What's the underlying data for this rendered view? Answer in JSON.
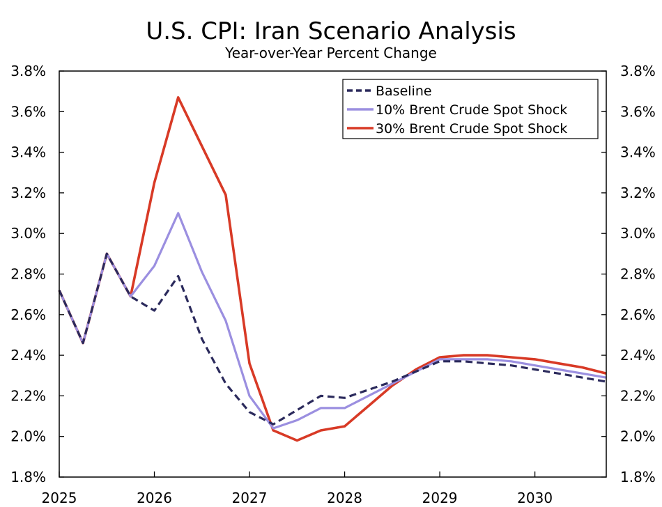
{
  "chart_data": {
    "type": "line",
    "title": "U.S. CPI: Iran Scenario Analysis",
    "subtitle": "Year-over-Year Percent Change",
    "xlabel": "",
    "ylabel": "",
    "xlim": [
      2025,
      2030.75
    ],
    "ylim": [
      1.8,
      3.8
    ],
    "yticks": [
      1.8,
      2.0,
      2.2,
      2.4,
      2.6,
      2.8,
      3.0,
      3.2,
      3.4,
      3.6,
      3.8
    ],
    "ytick_labels": [
      "1.8%",
      "2.0%",
      "2.2%",
      "2.4%",
      "2.6%",
      "2.8%",
      "3.0%",
      "3.2%",
      "3.4%",
      "3.6%",
      "3.8%"
    ],
    "xticks": [
      2025,
      2026,
      2027,
      2028,
      2029,
      2030
    ],
    "xtick_labels": [
      "2025",
      "2026",
      "2027",
      "2028",
      "2029",
      "2030"
    ],
    "legend_position": "top-right",
    "x": [
      2025,
      2025.25,
      2025.5,
      2025.75,
      2026,
      2026.25,
      2026.5,
      2026.75,
      2027,
      2027.25,
      2027.5,
      2027.75,
      2028,
      2028.25,
      2028.5,
      2028.75,
      2029,
      2029.25,
      2029.5,
      2029.75,
      2030,
      2030.25,
      2030.5,
      2030.75
    ],
    "series": [
      {
        "name": "Baseline",
        "color": "#2b2a5c",
        "style": "dashed",
        "values": [
          2.72,
          2.46,
          2.9,
          2.69,
          2.62,
          2.79,
          2.48,
          2.26,
          2.12,
          2.06,
          2.13,
          2.2,
          2.19,
          2.23,
          2.27,
          2.32,
          2.37,
          2.37,
          2.36,
          2.35,
          2.33,
          2.31,
          2.29,
          2.27
        ]
      },
      {
        "name": "10% Brent Crude Spot Shock",
        "color": "#9b8fe0",
        "style": "solid",
        "values": [
          2.72,
          2.46,
          2.9,
          2.69,
          2.84,
          3.1,
          2.81,
          2.57,
          2.2,
          2.04,
          2.08,
          2.14,
          2.14,
          2.2,
          2.26,
          2.32,
          2.38,
          2.38,
          2.38,
          2.37,
          2.35,
          2.33,
          2.31,
          2.29
        ]
      },
      {
        "name": "30% Brent Crude Spot Shock",
        "color": "#d83a26",
        "style": "solid",
        "values": [
          2.72,
          2.46,
          2.9,
          2.69,
          3.25,
          3.67,
          3.43,
          3.19,
          2.36,
          2.03,
          1.98,
          2.03,
          2.05,
          2.15,
          2.25,
          2.33,
          2.39,
          2.4,
          2.4,
          2.39,
          2.38,
          2.36,
          2.34,
          2.31
        ]
      }
    ]
  }
}
